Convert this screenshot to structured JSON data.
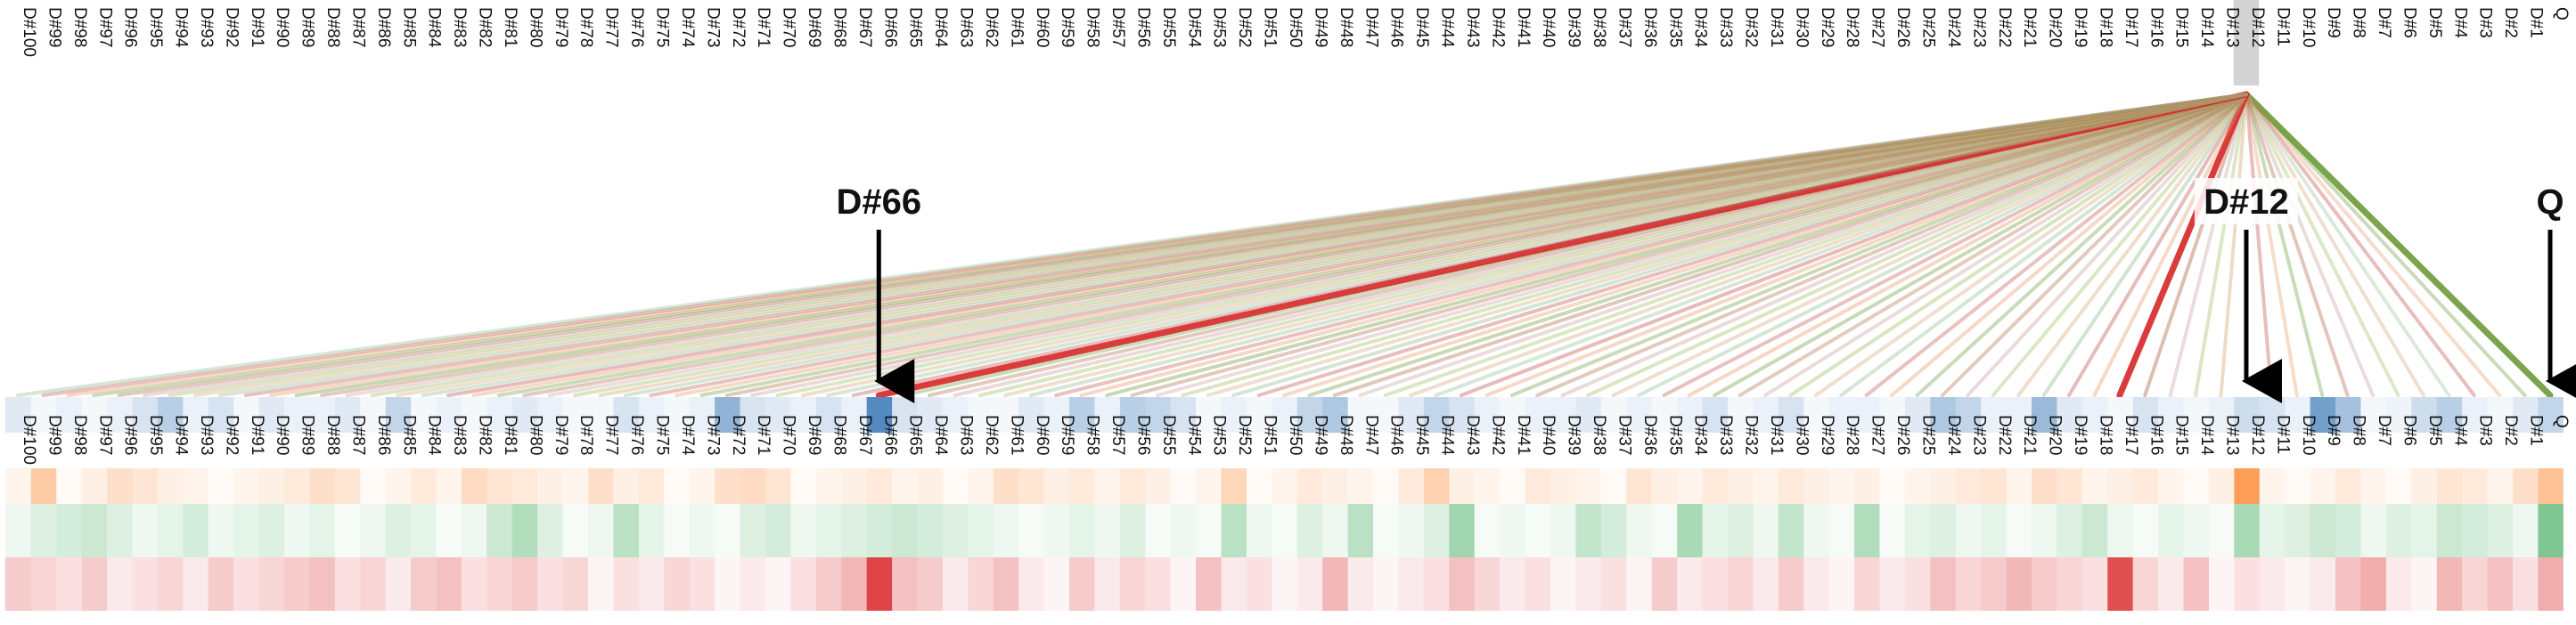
{
  "labels": [
    "Q",
    "D#1",
    "D#2",
    "D#3",
    "D#4",
    "D#5",
    "D#6",
    "D#7",
    "D#8",
    "D#9",
    "D#10",
    "D#11",
    "D#12",
    "D#13",
    "D#14",
    "D#15",
    "D#16",
    "D#17",
    "D#18",
    "D#19",
    "D#20",
    "D#21",
    "D#22",
    "D#23",
    "D#24",
    "D#25",
    "D#26",
    "D#27",
    "D#28",
    "D#29",
    "D#30",
    "D#31",
    "D#32",
    "D#33",
    "D#34",
    "D#35",
    "D#36",
    "D#37",
    "D#38",
    "D#39",
    "D#40",
    "D#41",
    "D#42",
    "D#43",
    "D#44",
    "D#45",
    "D#46",
    "D#47",
    "D#48",
    "D#49",
    "D#50",
    "D#51",
    "D#52",
    "D#53",
    "D#54",
    "D#55",
    "D#56",
    "D#57",
    "D#58",
    "D#59",
    "D#60",
    "D#61",
    "D#62",
    "D#63",
    "D#64",
    "D#65",
    "D#66",
    "D#67",
    "D#68",
    "D#69",
    "D#70",
    "D#71",
    "D#72",
    "D#73",
    "D#74",
    "D#75",
    "D#76",
    "D#77",
    "D#78",
    "D#79",
    "D#80",
    "D#81",
    "D#82",
    "D#83",
    "D#84",
    "D#85",
    "D#86",
    "D#87",
    "D#88",
    "D#89",
    "D#90",
    "D#91",
    "D#92",
    "D#93",
    "D#94",
    "D#95",
    "D#96",
    "D#97",
    "D#98",
    "D#99",
    "D#100"
  ],
  "selected_top": "D#12",
  "callouts": [
    {
      "text": "D#66",
      "target": "D#66"
    },
    {
      "text": "D#12",
      "target": "D#12"
    },
    {
      "text": "Q",
      "target": "Q"
    }
  ],
  "colors": {
    "selected_header": "#d3d3d3",
    "blue_scale": "#2166ac",
    "orange_scale": "#fd8d3c",
    "green_scale": "#41ab5d",
    "red_scale": "#d7191c",
    "link_red": "#d62728",
    "link_green": "#6b9a3a",
    "link_brown": "#b0704a",
    "arrow": "#000000"
  },
  "strong_links": [
    "D#66",
    "D#17",
    "Q"
  ],
  "rows": {
    "blue": [
      0.3,
      0.15,
      0.05,
      0.1,
      0.35,
      0.25,
      0.08,
      0.05,
      0.45,
      0.7,
      0.1,
      0.2,
      0.25,
      0.1,
      0.05,
      0.1,
      0.2,
      0.05,
      0.1,
      0.15,
      0.5,
      0.1,
      0.1,
      0.3,
      0.4,
      0.15,
      0.05,
      0.1,
      0.1,
      0.05,
      0.2,
      0.1,
      0.05,
      0.2,
      0.1,
      0.05,
      0.1,
      0.05,
      0.15,
      0.1,
      0.1,
      0.05,
      0.1,
      0.2,
      0.3,
      0.15,
      0.05,
      0.05,
      0.4,
      0.3,
      0.1,
      0.05,
      0.1,
      0.05,
      0.2,
      0.3,
      0.35,
      0.1,
      0.35,
      0.1,
      0.15,
      0.05,
      0.05,
      0.1,
      0.15,
      0.2,
      0.85,
      0.1,
      0.2,
      0.1,
      0.15,
      0.2,
      0.55,
      0.1,
      0.05,
      0.1,
      0.2,
      0.05,
      0.05,
      0.1,
      0.15,
      0.1,
      0.05,
      0.1,
      0.05,
      0.3,
      0.05,
      0.15,
      0.1,
      0.1,
      0.15,
      0.05,
      0.2,
      0.1,
      0.35,
      0.2,
      0.1,
      0.05,
      0.1,
      0.05,
      0.15
    ],
    "orange": [
      0.6,
      0.3,
      0.1,
      0.2,
      0.25,
      0.15,
      0.05,
      0.1,
      0.2,
      0.1,
      0.05,
      0.1,
      0.95,
      0.15,
      0.05,
      0.1,
      0.2,
      0.15,
      0.1,
      0.25,
      0.3,
      0.1,
      0.25,
      0.2,
      0.15,
      0.1,
      0.05,
      0.15,
      0.1,
      0.15,
      0.2,
      0.1,
      0.15,
      0.2,
      0.1,
      0.15,
      0.25,
      0.05,
      0.1,
      0.15,
      0.2,
      0.05,
      0.1,
      0.15,
      0.45,
      0.2,
      0.05,
      0.1,
      0.15,
      0.2,
      0.1,
      0.05,
      0.4,
      0.1,
      0.05,
      0.15,
      0.2,
      0.1,
      0.2,
      0.15,
      0.25,
      0.3,
      0.1,
      0.05,
      0.15,
      0.1,
      0.2,
      0.15,
      0.1,
      0.05,
      0.25,
      0.35,
      0.3,
      0.1,
      0.05,
      0.2,
      0.15,
      0.3,
      0.1,
      0.15,
      0.2,
      0.25,
      0.35,
      0.1,
      0.2,
      0.1,
      0.05,
      0.25,
      0.3,
      0.2,
      0.15,
      0.1,
      0.05,
      0.1,
      0.15,
      0.25,
      0.3,
      0.15,
      0.05,
      0.5,
      0.1
    ],
    "green": [
      0.75,
      0.1,
      0.2,
      0.25,
      0.3,
      0.15,
      0.2,
      0.1,
      0.25,
      0.3,
      0.2,
      0.15,
      0.5,
      0.05,
      0.1,
      0.15,
      0.05,
      0.1,
      0.3,
      0.2,
      0.1,
      0.05,
      0.15,
      0.1,
      0.2,
      0.15,
      0.05,
      0.45,
      0.05,
      0.1,
      0.35,
      0.1,
      0.2,
      0.15,
      0.5,
      0.05,
      0.1,
      0.25,
      0.35,
      0.1,
      0.05,
      0.1,
      0.05,
      0.55,
      0.2,
      0.1,
      0.05,
      0.4,
      0.1,
      0.2,
      0.05,
      0.1,
      0.4,
      0.05,
      0.1,
      0.05,
      0.2,
      0.1,
      0.15,
      0.1,
      0.05,
      0.1,
      0.15,
      0.2,
      0.25,
      0.3,
      0.25,
      0.2,
      0.15,
      0.1,
      0.25,
      0.2,
      0.05,
      0.1,
      0.05,
      0.15,
      0.4,
      0.1,
      0.05,
      0.2,
      0.45,
      0.3,
      0.1,
      0.05,
      0.15,
      0.2,
      0.1,
      0.05,
      0.15,
      0.1,
      0.2,
      0.15,
      0.1,
      0.25,
      0.15,
      0.1,
      0.2,
      0.3,
      0.25,
      0.2,
      0.1
    ],
    "red": [
      0.4,
      0.15,
      0.3,
      0.2,
      0.35,
      0.05,
      0.1,
      0.4,
      0.3,
      0.1,
      0.05,
      0.1,
      0.15,
      0.05,
      0.3,
      0.1,
      0.2,
      0.85,
      0.15,
      0.2,
      0.25,
      0.35,
      0.25,
      0.2,
      0.3,
      0.15,
      0.1,
      0.2,
      0.05,
      0.1,
      0.25,
      0.1,
      0.2,
      0.15,
      0.1,
      0.25,
      0.05,
      0.15,
      0.1,
      0.05,
      0.15,
      0.1,
      0.2,
      0.3,
      0.15,
      0.1,
      0.05,
      0.1,
      0.35,
      0.1,
      0.05,
      0.15,
      0.1,
      0.3,
      0.05,
      0.15,
      0.2,
      0.1,
      0.25,
      0.05,
      0.1,
      0.3,
      0.2,
      0.1,
      0.25,
      0.3,
      0.9,
      0.35,
      0.25,
      0.15,
      0.05,
      0.1,
      0.05,
      0.15,
      0.2,
      0.1,
      0.15,
      0.05,
      0.2,
      0.15,
      0.25,
      0.2,
      0.15,
      0.3,
      0.25,
      0.1,
      0.2,
      0.15,
      0.3,
      0.25,
      0.2,
      0.15,
      0.25,
      0.1,
      0.2,
      0.15,
      0.1,
      0.25,
      0.15,
      0.2,
      0.25
    ]
  },
  "link_strength": [
    0.9,
    0.3,
    0.25,
    0.35,
    0.2,
    0.3,
    0.25,
    0.35,
    0.4,
    0.3,
    0.25,
    0.35,
    0.95,
    0.45,
    0.3,
    0.35,
    0.55,
    0.85,
    0.35,
    0.4,
    0.45,
    0.35,
    0.3,
    0.4,
    0.35,
    0.3,
    0.35,
    0.3,
    0.35,
    0.3,
    0.4,
    0.35,
    0.3,
    0.35,
    0.4,
    0.3,
    0.35,
    0.3,
    0.35,
    0.4,
    0.35,
    0.3,
    0.35,
    0.4,
    0.3,
    0.35,
    0.3,
    0.35,
    0.4,
    0.35,
    0.3,
    0.35,
    0.4,
    0.3,
    0.35,
    0.3,
    0.35,
    0.4,
    0.35,
    0.3,
    0.35,
    0.3,
    0.35,
    0.4,
    0.35,
    0.3,
    0.95,
    0.35,
    0.3,
    0.35,
    0.3,
    0.4,
    0.35,
    0.3,
    0.35,
    0.3,
    0.35,
    0.4,
    0.35,
    0.3,
    0.35,
    0.3,
    0.35,
    0.4,
    0.35,
    0.3,
    0.35,
    0.3,
    0.35,
    0.4,
    0.35,
    0.3,
    0.35,
    0.3,
    0.35,
    0.4,
    0.35,
    0.3,
    0.35,
    0.3,
    0.35
  ]
}
